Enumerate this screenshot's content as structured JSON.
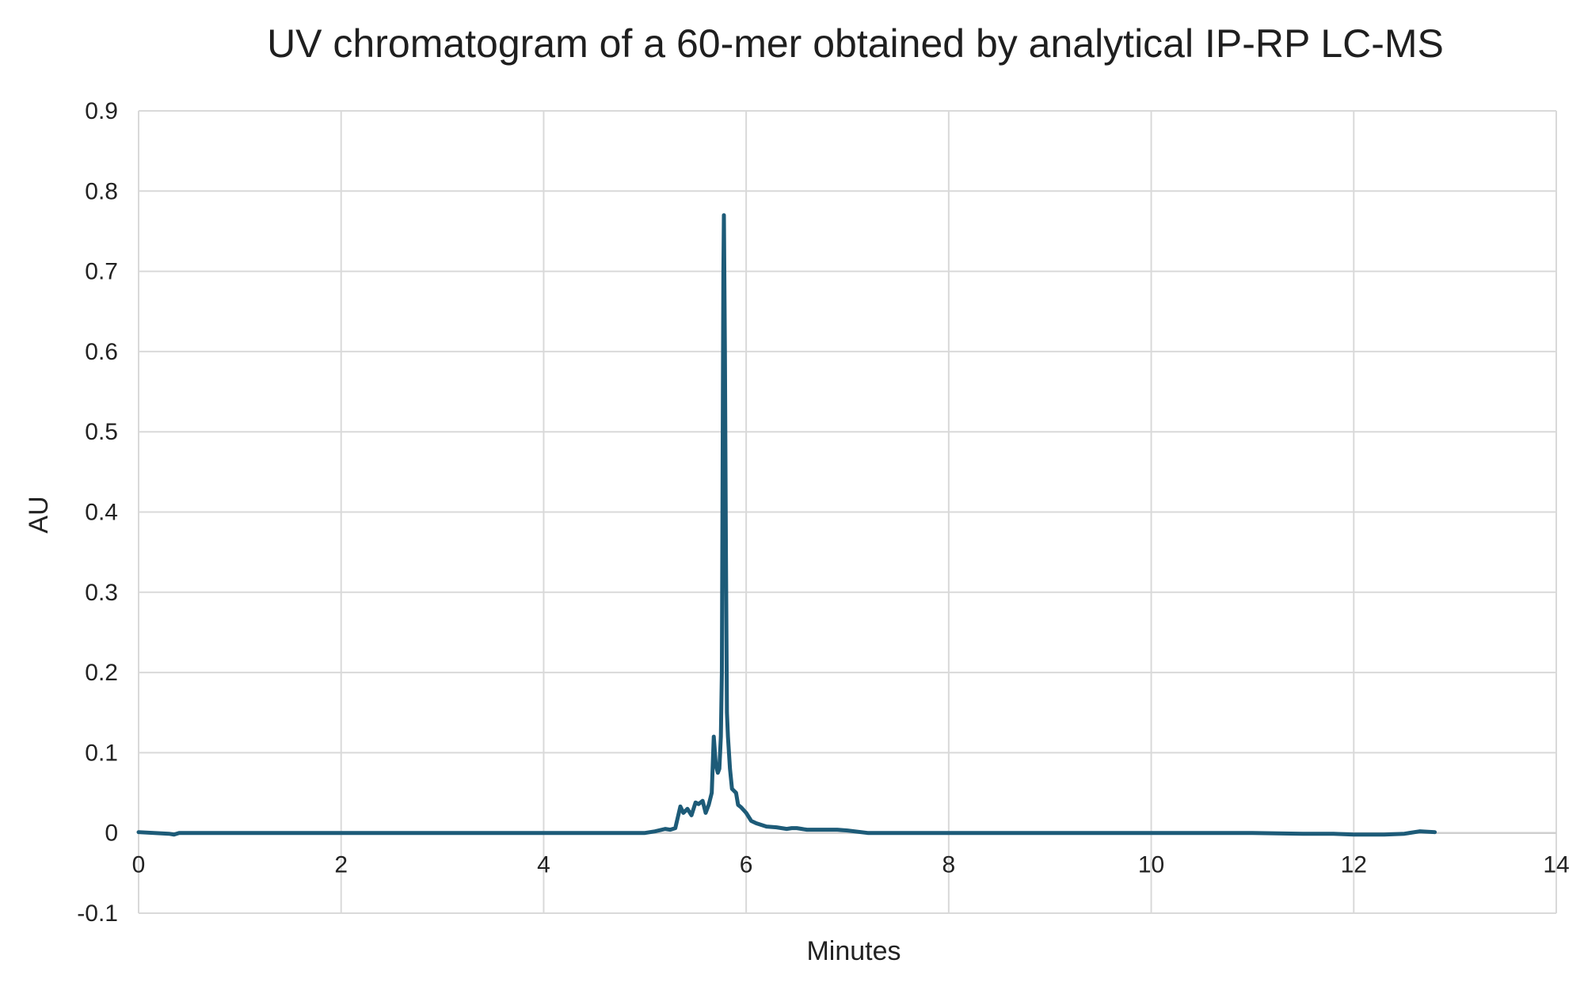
{
  "chart_data": {
    "type": "line",
    "title": "UV chromatogram of a 60-mer obtained by analytical IP-RP LC-MS",
    "xlabel": "Minutes",
    "ylabel": "AU",
    "xlim": [
      0,
      14
    ],
    "ylim": [
      -0.1,
      0.9
    ],
    "xticks": [
      0,
      2,
      4,
      6,
      8,
      10,
      12,
      14
    ],
    "yticks": [
      -0.1,
      0,
      0.1,
      0.2,
      0.3,
      0.4,
      0.5,
      0.6,
      0.7,
      0.8,
      0.9
    ],
    "xtick_labels": [
      "0",
      "2",
      "4",
      "6",
      "8",
      "10",
      "12",
      "14"
    ],
    "ytick_labels": [
      "-0.1",
      "0",
      "0.1",
      "0.2",
      "0.3",
      "0.4",
      "0.5",
      "0.6",
      "0.7",
      "0.8",
      "0.9"
    ],
    "grid": true,
    "legend": "none",
    "colors": {
      "line": "#1d5b78",
      "grid": "#d9d9d9",
      "text": "#222222"
    },
    "series": [
      {
        "x": [
          0,
          0.3,
          0.35,
          0.4,
          1,
          2,
          3,
          4,
          4.5,
          5.0,
          5.1,
          5.2,
          5.25,
          5.3,
          5.35,
          5.38,
          5.42,
          5.46,
          5.5,
          5.53,
          5.57,
          5.6,
          5.63,
          5.66,
          5.68,
          5.7,
          5.72,
          5.735,
          5.75,
          5.76,
          5.77,
          5.775,
          5.78,
          5.79,
          5.8,
          5.81,
          5.82,
          5.83,
          5.84,
          5.86,
          5.9,
          5.92,
          5.95,
          6.0,
          6.05,
          6.1,
          6.2,
          6.3,
          6.4,
          6.45,
          6.5,
          6.55,
          6.6,
          6.7,
          6.9,
          7.0,
          7.2,
          8,
          9,
          10,
          11,
          11.5,
          11.8,
          12.0,
          12.3,
          12.5,
          12.65,
          12.8
        ],
        "y": [
          0.001,
          -0.001,
          -0.002,
          0.0,
          0.0,
          0.0,
          0.0,
          0.0,
          0.0,
          0.0,
          0.002,
          0.005,
          0.004,
          0.006,
          0.033,
          0.025,
          0.03,
          0.022,
          0.038,
          0.036,
          0.04,
          0.025,
          0.035,
          0.05,
          0.12,
          0.085,
          0.075,
          0.08,
          0.12,
          0.2,
          0.55,
          0.7,
          0.77,
          0.6,
          0.35,
          0.15,
          0.12,
          0.1,
          0.08,
          0.055,
          0.05,
          0.035,
          0.032,
          0.025,
          0.015,
          0.012,
          0.008,
          0.007,
          0.005,
          0.006,
          0.006,
          0.005,
          0.004,
          0.004,
          0.004,
          0.003,
          0.0,
          0.0,
          0.0,
          0.0,
          0.0,
          -0.001,
          -0.001,
          -0.002,
          -0.002,
          -0.001,
          0.002,
          0.001
        ]
      }
    ]
  }
}
